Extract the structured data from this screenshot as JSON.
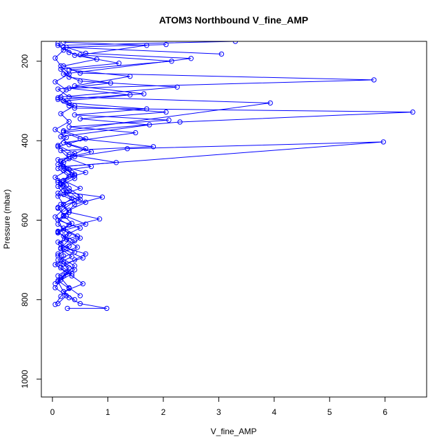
{
  "chart_data": {
    "type": "line",
    "title": "ATOM3 Northbound V_fine_AMP",
    "xlabel": "V_fine_AMP",
    "ylabel": "Pressure (mbar)",
    "xlim": [
      -0.2,
      6.75
    ],
    "ylim": [
      1045,
      150
    ],
    "y_reversed": true,
    "x_ticks": [
      0,
      1,
      2,
      3,
      4,
      5,
      6
    ],
    "y_ticks": [
      200,
      400,
      600,
      800,
      1000
    ],
    "grid": false,
    "legend": "none",
    "marker": "open-circle",
    "series_color": "#0000ff",
    "series": [
      {
        "name": "",
        "points": [
          [
            0.27,
            822
          ],
          [
            0.98,
            822
          ],
          [
            0.5,
            810
          ],
          [
            0.3,
            795
          ],
          [
            0.2,
            780
          ],
          [
            0.55,
            760
          ],
          [
            0.35,
            740
          ],
          [
            0.15,
            720
          ],
          [
            0.4,
            700
          ],
          [
            0.6,
            685
          ],
          [
            0.25,
            670
          ],
          [
            0.1,
            655
          ],
          [
            0.45,
            640
          ],
          [
            0.2,
            620
          ],
          [
            0.85,
            597
          ],
          [
            0.3,
            580
          ],
          [
            0.15,
            560
          ],
          [
            0.5,
            540
          ],
          [
            0.3,
            520
          ],
          [
            0.1,
            500
          ],
          [
            0.6,
            480
          ],
          [
            0.2,
            465
          ],
          [
            5.97,
            403
          ],
          [
            1.35,
            420
          ],
          [
            0.4,
            440
          ],
          [
            0.2,
            455
          ],
          [
            0.1,
            470
          ],
          [
            0.3,
            490
          ],
          [
            0.15,
            510
          ],
          [
            0.25,
            530
          ],
          [
            0.9,
            542
          ],
          [
            0.4,
            560
          ],
          [
            0.2,
            590
          ],
          [
            0.1,
            610
          ],
          [
            0.3,
            635
          ],
          [
            0.15,
            660
          ],
          [
            0.2,
            690
          ],
          [
            0.1,
            710
          ],
          [
            0.3,
            730
          ],
          [
            0.15,
            750
          ],
          [
            0.05,
            770
          ],
          [
            0.25,
            790
          ],
          [
            0.1,
            810
          ]
        ]
      },
      {
        "name": "",
        "points": [
          [
            0.05,
            760
          ],
          [
            0.2,
            740
          ],
          [
            0.4,
            715
          ],
          [
            0.1,
            690
          ],
          [
            0.3,
            665
          ],
          [
            0.5,
            645
          ],
          [
            0.2,
            625
          ],
          [
            0.1,
            600
          ],
          [
            0.3,
            575
          ],
          [
            0.6,
            555
          ],
          [
            0.2,
            535
          ],
          [
            0.1,
            515
          ],
          [
            0.4,
            495
          ],
          [
            0.2,
            475
          ],
          [
            0.7,
            465
          ],
          [
            0.3,
            445
          ],
          [
            0.15,
            425
          ],
          [
            1.82,
            415
          ],
          [
            0.5,
            395
          ],
          [
            0.2,
            378
          ],
          [
            2.3,
            353
          ],
          [
            6.5,
            328
          ],
          [
            0.4,
            318
          ],
          [
            0.2,
            300
          ],
          [
            1.4,
            285
          ],
          [
            0.3,
            268
          ],
          [
            5.8,
            247
          ],
          [
            0.5,
            230
          ],
          [
            0.2,
            212
          ],
          [
            0.8,
            195
          ],
          [
            0.3,
            178
          ],
          [
            0.1,
            160
          ],
          [
            3.3,
            150
          ]
        ]
      },
      {
        "name": "",
        "points": [
          [
            0.4,
            800
          ],
          [
            0.2,
            780
          ],
          [
            0.1,
            755
          ],
          [
            0.35,
            735
          ],
          [
            0.2,
            710
          ],
          [
            0.55,
            695
          ],
          [
            0.15,
            670
          ],
          [
            0.3,
            650
          ],
          [
            0.1,
            630
          ],
          [
            0.6,
            610
          ],
          [
            0.25,
            590
          ],
          [
            0.1,
            570
          ],
          [
            0.35,
            545
          ],
          [
            0.2,
            525
          ],
          [
            0.1,
            505
          ],
          [
            0.4,
            485
          ],
          [
            0.2,
            465
          ],
          [
            1.15,
            455
          ],
          [
            0.3,
            435
          ],
          [
            0.1,
            415
          ],
          [
            0.6,
            395
          ],
          [
            0.2,
            375
          ],
          [
            3.93,
            305
          ],
          [
            0.3,
            290
          ],
          [
            0.1,
            270
          ],
          [
            1.05,
            255
          ],
          [
            0.3,
            240
          ],
          [
            0.15,
            220
          ],
          [
            1.2,
            205
          ],
          [
            0.4,
            185
          ],
          [
            0.2,
            165
          ],
          [
            2.05,
            158
          ]
        ]
      },
      {
        "name": "",
        "points": [
          [
            0.1,
            740
          ],
          [
            0.3,
            720
          ],
          [
            0.1,
            700
          ],
          [
            0.4,
            680
          ],
          [
            0.15,
            660
          ],
          [
            0.2,
            640
          ],
          [
            0.5,
            620
          ],
          [
            0.1,
            600
          ],
          [
            0.3,
            580
          ],
          [
            0.2,
            560
          ],
          [
            0.1,
            540
          ],
          [
            0.5,
            520
          ],
          [
            0.2,
            500
          ],
          [
            0.35,
            480
          ],
          [
            0.1,
            460
          ],
          [
            0.3,
            440
          ],
          [
            0.6,
            420
          ],
          [
            0.2,
            405
          ],
          [
            1.5,
            380
          ],
          [
            0.3,
            365
          ],
          [
            2.1,
            348
          ],
          [
            0.4,
            335
          ],
          [
            1.7,
            320
          ],
          [
            0.3,
            305
          ],
          [
            0.15,
            290
          ],
          [
            2.25,
            265
          ],
          [
            0.5,
            250
          ],
          [
            0.2,
            232
          ],
          [
            2.5,
            193
          ],
          [
            0.6,
            180
          ],
          [
            0.25,
            165
          ],
          [
            3.05,
            182
          ]
        ]
      },
      {
        "name": "",
        "points": [
          [
            0.5,
            790
          ],
          [
            0.3,
            770
          ],
          [
            0.15,
            745
          ],
          [
            0.4,
            725
          ],
          [
            0.2,
            705
          ],
          [
            0.1,
            685
          ],
          [
            0.45,
            668
          ],
          [
            0.25,
            648
          ],
          [
            0.1,
            628
          ],
          [
            0.35,
            608
          ],
          [
            0.2,
            588
          ],
          [
            0.1,
            568
          ],
          [
            0.5,
            548
          ],
          [
            0.3,
            528
          ],
          [
            0.15,
            508
          ],
          [
            0.4,
            488
          ],
          [
            0.2,
            468
          ],
          [
            0.1,
            448
          ],
          [
            0.7,
            428
          ],
          [
            0.3,
            410
          ],
          [
            0.15,
            390
          ],
          [
            1.75,
            360
          ],
          [
            0.5,
            345
          ],
          [
            2.05,
            328
          ],
          [
            0.3,
            312
          ],
          [
            0.1,
            296
          ],
          [
            1.65,
            282
          ],
          [
            0.4,
            262
          ],
          [
            1.4,
            238
          ],
          [
            0.3,
            222
          ],
          [
            2.15,
            200
          ],
          [
            0.5,
            184
          ],
          [
            1.7,
            160
          ],
          [
            0.2,
            152
          ]
        ]
      },
      {
        "name": "",
        "points": [
          [
            0.05,
            812
          ],
          [
            0.15,
            792
          ],
          [
            0.3,
            772
          ],
          [
            0.1,
            752
          ],
          [
            0.25,
            732
          ],
          [
            0.05,
            712
          ],
          [
            0.35,
            692
          ],
          [
            0.15,
            672
          ],
          [
            0.4,
            652
          ],
          [
            0.1,
            632
          ],
          [
            0.3,
            612
          ],
          [
            0.05,
            592
          ],
          [
            0.2,
            572
          ],
          [
            0.4,
            552
          ],
          [
            0.1,
            532
          ],
          [
            0.25,
            512
          ],
          [
            0.05,
            492
          ],
          [
            0.3,
            472
          ],
          [
            0.15,
            452
          ],
          [
            0.4,
            432
          ],
          [
            0.1,
            412
          ],
          [
            0.25,
            392
          ],
          [
            0.05,
            372
          ],
          [
            0.3,
            352
          ],
          [
            0.15,
            332
          ],
          [
            0.4,
            312
          ],
          [
            0.1,
            292
          ],
          [
            0.25,
            272
          ],
          [
            0.05,
            252
          ],
          [
            0.3,
            232
          ],
          [
            0.15,
            212
          ],
          [
            0.05,
            192
          ],
          [
            0.2,
            172
          ],
          [
            0.1,
            155
          ]
        ]
      }
    ]
  }
}
